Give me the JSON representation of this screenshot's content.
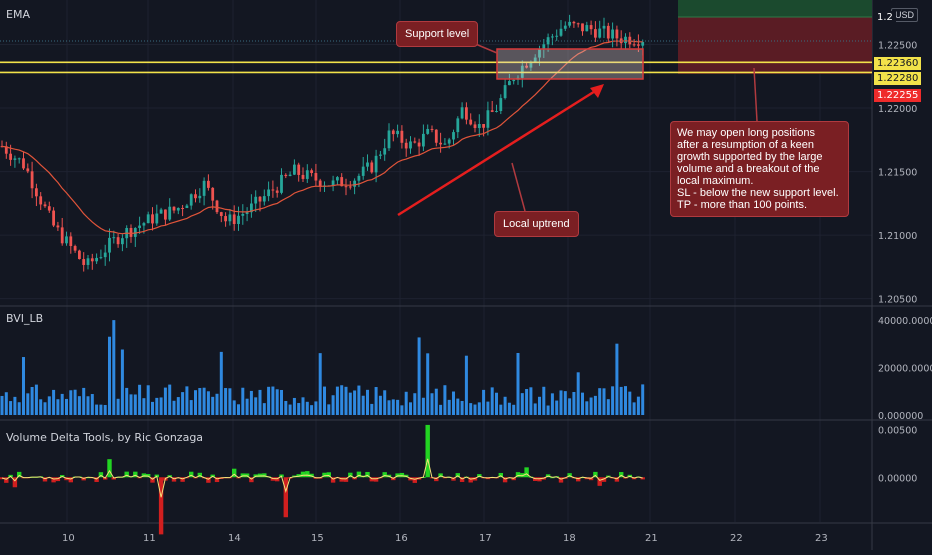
{
  "main_pane": {
    "title": "EMA"
  },
  "volume_pane": {
    "title": "BVI_LB"
  },
  "delta_pane": {
    "title": "Volume Delta Tools, by Ric Gonzaga"
  },
  "currency_badge": "USD",
  "annotations": {
    "support": "Support level",
    "uptrend": "Local uptrend",
    "idea_lines": [
      "We may open long positions",
      "after a resumption of a keen",
      "growth supported by the large",
      "volume and a breakout of the",
      "local maximum.",
      "SL - below the new support level.",
      "TP - more than 100 points."
    ]
  },
  "price_tags": [
    {
      "label": "1.2",
      "color": "#ffffff",
      "bg": "#131722"
    },
    {
      "label": "1.22360",
      "color": "#131722",
      "bg": "#f2e24a"
    },
    {
      "label": "1.22280",
      "color": "#131722",
      "bg": "#f2e24a"
    },
    {
      "label": "1.22255",
      "color": "#ffffff",
      "bg": "#ef2b2b"
    }
  ],
  "chart_data": [
    {
      "type": "candlestick",
      "pane": "price",
      "x_ticks": [
        "10",
        "11",
        "14",
        "15",
        "16",
        "17",
        "18",
        "21",
        "22",
        "23"
      ],
      "y_ticks": [
        1.205,
        1.21,
        1.215,
        1.22,
        1.225
      ],
      "y_tick_labels": [
        "1.20500",
        "1.21000",
        "1.21500",
        "1.22000",
        "1.22500"
      ],
      "ylim": [
        1.2045,
        1.2285
      ],
      "support_lines": [
        1.2236,
        1.2228
      ],
      "colors": {
        "up": "#26a69a",
        "down": "#ef5350",
        "ema": "#e0543a",
        "support": "#f2e24a"
      }
    },
    {
      "type": "bar",
      "pane": "volume",
      "y_ticks": [
        0,
        20000,
        40000
      ],
      "y_tick_labels": [
        "0.000000",
        "20000.000000",
        "40000.000000"
      ],
      "ylim": [
        0,
        43000
      ],
      "color": "#2f89e0"
    },
    {
      "type": "area",
      "pane": "delta",
      "y_ticks": [
        0,
        0.005
      ],
      "y_tick_labels": [
        "0.00000",
        "0.00500"
      ],
      "ylim": [
        -0.0047,
        0.0057
      ],
      "colors": {
        "positive": "#22d422",
        "negative": "#d11f1f",
        "line": "#f5e27a"
      }
    }
  ]
}
